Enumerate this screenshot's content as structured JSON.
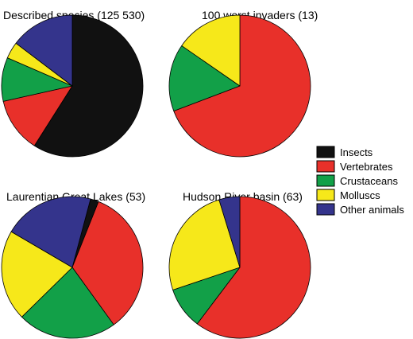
{
  "colors": {
    "Insects": "#111111",
    "Vertebrates": "#e8302a",
    "Crustaceans": "#12a048",
    "Molluscs": "#f6e81a",
    "Other animals": "#34348c"
  },
  "legend": [
    "Insects",
    "Vertebrates",
    "Crustaceans",
    "Molluscs",
    "Other animals"
  ],
  "chart_data": [
    {
      "type": "pie",
      "title": "Described species (125 530)",
      "labels": [
        "Insects",
        "Vertebrates",
        "Crustaceans",
        "Molluscs",
        "Other animals"
      ],
      "values": [
        59.0,
        12.5,
        10.0,
        3.8,
        14.7
      ]
    },
    {
      "type": "pie",
      "title": "100 worst invaders (13)",
      "labels": [
        "Vertebrates",
        "Crustaceans",
        "Molluscs"
      ],
      "values": [
        9,
        2,
        2
      ]
    },
    {
      "type": "pie",
      "title": "Laurentian Great Lakes (53)",
      "labels": [
        "Insects",
        "Vertebrates",
        "Crustaceans",
        "Molluscs",
        "Other animals"
      ],
      "values": [
        1,
        18,
        12,
        11,
        11
      ]
    },
    {
      "type": "pie",
      "title": "Hudson River basin (63)",
      "labels": [
        "Vertebrates",
        "Crustaceans",
        "Molluscs",
        "Other animals"
      ],
      "values": [
        38,
        6,
        16,
        3
      ]
    }
  ]
}
